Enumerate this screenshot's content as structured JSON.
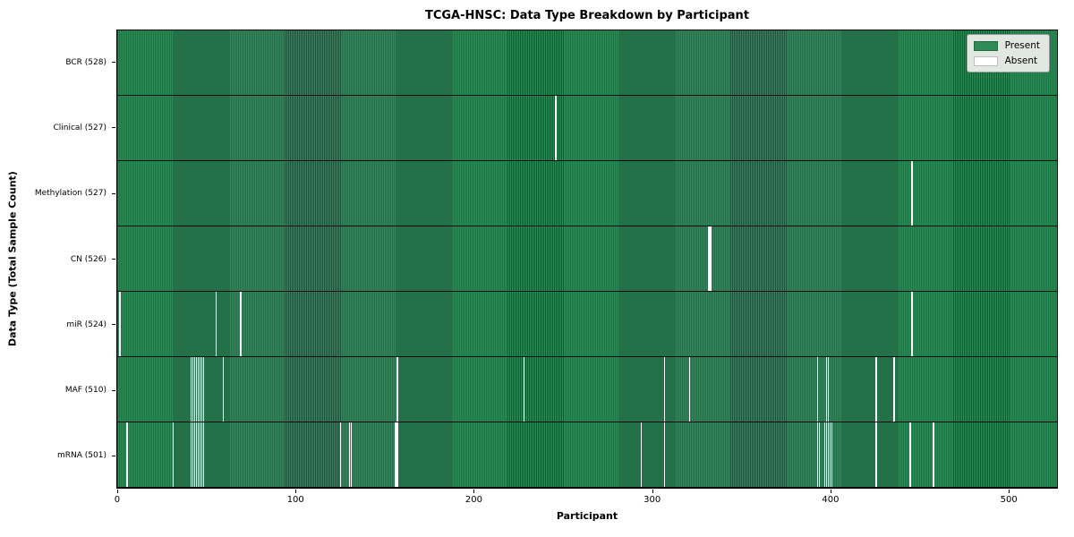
{
  "figure": {
    "title": "TCGA-HNSC: Data Type Breakdown by Participant",
    "xlabel": "Participant",
    "ylabel": "Data Type (Total Sample Count)"
  },
  "legend": {
    "present_label": "Present",
    "absent_label": "Absent",
    "position": "upper right"
  },
  "colors": {
    "present_fill": "#2e8b57",
    "present_cell_edge": "#1a5438",
    "absent_fill": "#fcfcfc",
    "row_separator": "#0d0d0d",
    "legend_background": "#e1e7e1",
    "axes_border": "#000000"
  },
  "chart_data": {
    "type": "heatmap",
    "title": "TCGA-HNSC: Data Type Breakdown by Participant",
    "xlabel": "Participant",
    "ylabel": "Data Type (Total Sample Count)",
    "x_ticks": [
      0,
      100,
      200,
      300,
      400,
      500
    ],
    "x_range": [
      0,
      528
    ],
    "n_participants": 528,
    "grid": false,
    "legend_entries": [
      "Present",
      "Absent"
    ],
    "legend_position": "upper right",
    "rows": [
      {
        "data_type": "BCR",
        "label": "BCR (528)",
        "present_count": 528,
        "absent_count": 0,
        "absent_participants": []
      },
      {
        "data_type": "Clinical",
        "label": "Clinical (527)",
        "present_count": 527,
        "absent_count": 1,
        "absent_participants": [
          246
        ]
      },
      {
        "data_type": "Methylation",
        "label": "Methylation (527)",
        "present_count": 527,
        "absent_count": 1,
        "absent_participants": [
          446
        ]
      },
      {
        "data_type": "CN",
        "label": "CN (526)",
        "present_count": 526,
        "absent_count": 2,
        "absent_participants": [
          332,
          333
        ]
      },
      {
        "data_type": "miR",
        "label": "miR (524)",
        "present_count": 524,
        "absent_count": 4,
        "absent_participants": [
          1,
          55,
          69,
          446
        ]
      },
      {
        "data_type": "MAF",
        "label": "MAF (510)",
        "present_count": 510,
        "absent_count": 18,
        "absent_participants": [
          41,
          42,
          43,
          44,
          45,
          46,
          47,
          48,
          59,
          157,
          228,
          307,
          321,
          393,
          398,
          399,
          426,
          436
        ]
      },
      {
        "data_type": "mRNA",
        "label": "mRNA (501)",
        "present_count": 501,
        "absent_count": 27,
        "absent_participants": [
          5,
          31,
          41,
          42,
          43,
          44,
          45,
          46,
          47,
          48,
          125,
          130,
          131,
          156,
          157,
          294,
          307,
          393,
          394,
          397,
          398,
          399,
          400,
          401,
          426,
          445,
          458
        ]
      }
    ]
  }
}
